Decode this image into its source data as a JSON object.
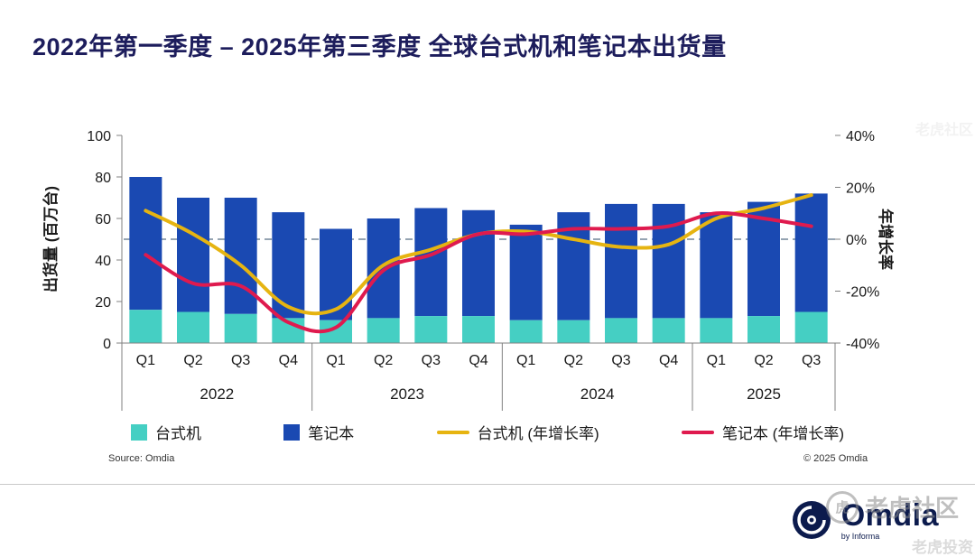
{
  "title": "2022年第一季度 – 2025年第三季度 全球台式机和笔记本出货量",
  "chart_data": {
    "type": "combo-stacked-bar-line",
    "categories": [
      "Q1",
      "Q2",
      "Q3",
      "Q4",
      "Q1",
      "Q2",
      "Q3",
      "Q4",
      "Q1",
      "Q2",
      "Q3",
      "Q4",
      "Q1",
      "Q2",
      "Q3"
    ],
    "year_groups": [
      {
        "label": "2022",
        "span": 4
      },
      {
        "label": "2023",
        "span": 4
      },
      {
        "label": "2024",
        "span": 4
      },
      {
        "label": "2025",
        "span": 3
      }
    ],
    "bar_series": [
      {
        "name": "台式机",
        "color": "#45cfc3",
        "values": [
          16,
          15,
          14,
          12,
          11,
          12,
          13,
          13,
          11,
          11,
          12,
          12,
          12,
          13,
          15
        ]
      },
      {
        "name": "笔记本",
        "color": "#1a49b2",
        "values": [
          64,
          55,
          56,
          51,
          44,
          48,
          52,
          51,
          46,
          52,
          55,
          55,
          51,
          55,
          57
        ]
      }
    ],
    "line_series": [
      {
        "name": "台式机 (年增长率)",
        "color": "#e6b411",
        "values": [
          11,
          2,
          -10,
          -26,
          -27,
          -10,
          -4,
          2,
          3,
          0,
          -3,
          -2,
          8,
          12,
          17
        ]
      },
      {
        "name": "笔记本 (年增长率)",
        "color": "#df1a4e",
        "values": [
          -6,
          -17,
          -18,
          -32,
          -34,
          -12,
          -6,
          2,
          2,
          4,
          4,
          5,
          10,
          8,
          5
        ]
      }
    ],
    "left_axis": {
      "label": "出货量 (百万台)",
      "min": 0,
      "max": 100,
      "step": 20
    },
    "right_axis": {
      "label": "年增长率",
      "min": -40,
      "max": 40,
      "step": 20,
      "suffix": "%"
    },
    "zero_line": {
      "style": "dashed",
      "color": "#95a4b2"
    },
    "grid": "off",
    "legend_position": "bottom"
  },
  "legend": [
    {
      "label": "台式机",
      "type": "square",
      "color": "#45cfc3"
    },
    {
      "label": "笔记本",
      "type": "square",
      "color": "#1a49b2"
    },
    {
      "label": "台式机 (年增长率)",
      "type": "line",
      "color": "#e6b411"
    },
    {
      "label": "笔记本 (年增长率)",
      "type": "line",
      "color": "#df1a4e"
    }
  ],
  "footer": {
    "source": "Source: Omdia",
    "copyright": "© 2025 Omdia"
  },
  "branding": {
    "logo_text": "Omdia",
    "logo_sub": "by Informa"
  },
  "watermark": {
    "main": "老虎社区",
    "corner": "老虎投资",
    "topright": "老虎社区",
    "icon_glyph": "虎"
  }
}
